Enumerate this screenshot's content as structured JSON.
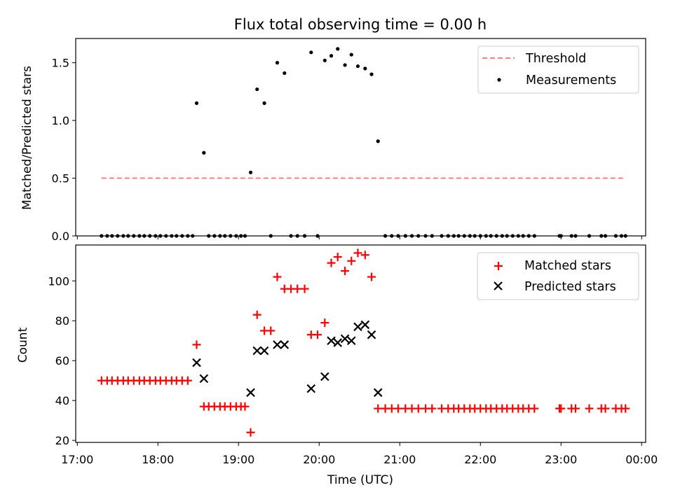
{
  "chart_data": [
    {
      "type": "scatter",
      "title": "Flux total observing time = 0.00 h",
      "xlabel": "",
      "ylabel": "Matched/Predicted stars",
      "ylim": [
        0,
        1.71
      ],
      "xlim": [
        16.98,
        24.05
      ],
      "yticks": [
        0.0,
        0.5,
        1.0,
        1.5
      ],
      "ytick_labels": [
        "0.0",
        "0.5",
        "1.0",
        "1.5"
      ],
      "legend_position": "top-right",
      "legend": [
        "Threshold",
        "Measurements"
      ],
      "threshold": {
        "name": "Threshold",
        "value": 0.5,
        "x_range": [
          17.3,
          23.8
        ],
        "color": "#ff8080"
      },
      "series": [
        {
          "name": "Measurements",
          "x": [
            17.3,
            17.37,
            17.43,
            17.5,
            17.57,
            17.63,
            17.7,
            17.77,
            17.83,
            17.9,
            17.97,
            18.03,
            18.1,
            18.17,
            18.23,
            18.3,
            18.37,
            18.43,
            18.48,
            18.57,
            18.63,
            18.7,
            18.77,
            18.83,
            18.9,
            18.97,
            19.03,
            19.08,
            19.15,
            19.23,
            19.32,
            19.4,
            19.48,
            19.57,
            19.65,
            19.73,
            19.82,
            19.9,
            19.98,
            20.07,
            20.15,
            20.23,
            20.32,
            20.4,
            20.48,
            20.57,
            20.65,
            20.73,
            20.82,
            20.9,
            20.98,
            21.07,
            21.15,
            21.23,
            21.32,
            21.4,
            21.52,
            21.6,
            21.67,
            21.73,
            21.8,
            21.87,
            21.93,
            22.0,
            22.07,
            22.13,
            22.2,
            22.27,
            22.33,
            22.4,
            22.47,
            22.53,
            22.6,
            22.67,
            22.98,
            23.0,
            23.13,
            23.18,
            23.35,
            23.5,
            23.55,
            23.68,
            23.75,
            23.8
          ],
          "y": [
            0,
            0,
            0,
            0,
            0,
            0,
            0,
            0,
            0,
            0,
            0,
            0,
            0,
            0,
            0,
            0,
            0,
            0,
            1.15,
            0.72,
            0,
            0,
            0,
            0,
            0,
            0,
            0,
            0,
            0.55,
            1.27,
            1.15,
            0,
            1.5,
            1.41,
            0,
            0,
            0,
            1.59,
            0,
            1.52,
            1.56,
            1.62,
            1.48,
            1.57,
            1.47,
            1.45,
            1.4,
            0.82,
            0,
            0,
            0,
            0,
            0,
            0,
            0,
            0,
            0,
            0,
            0,
            0,
            0,
            0,
            0,
            0,
            0,
            0,
            0,
            0,
            0,
            0,
            0,
            0,
            0,
            0,
            0,
            0,
            0,
            0,
            0,
            0,
            0,
            0,
            0,
            0
          ],
          "color": "#000000",
          "marker": "dot"
        }
      ]
    },
    {
      "type": "scatter",
      "title": "",
      "xlabel": "Time (UTC)",
      "ylabel": "Count",
      "ylim": [
        19,
        118
      ],
      "xlim": [
        16.98,
        24.05
      ],
      "yticks": [
        20,
        40,
        60,
        80,
        100
      ],
      "ytick_labels": [
        "20",
        "40",
        "60",
        "80",
        "100"
      ],
      "xticks": [
        17,
        18,
        19,
        20,
        21,
        22,
        23,
        24
      ],
      "xtick_labels": [
        "17:00",
        "18:00",
        "19:00",
        "20:00",
        "21:00",
        "22:00",
        "23:00",
        "00:00"
      ],
      "legend_position": "top-right",
      "legend": [
        "Matched stars",
        "Predicted stars"
      ],
      "series": [
        {
          "name": "Matched stars",
          "color": "#ff0000",
          "marker": "plus",
          "x": [
            17.3,
            17.37,
            17.43,
            17.5,
            17.57,
            17.63,
            17.7,
            17.77,
            17.83,
            17.9,
            17.97,
            18.03,
            18.1,
            18.17,
            18.23,
            18.3,
            18.37,
            18.48,
            18.57,
            18.63,
            18.7,
            18.77,
            18.83,
            18.9,
            18.97,
            19.03,
            19.08,
            19.15,
            19.23,
            19.32,
            19.4,
            19.48,
            19.57,
            19.65,
            19.73,
            19.82,
            19.9,
            19.98,
            20.07,
            20.15,
            20.23,
            20.32,
            20.4,
            20.48,
            20.57,
            20.65,
            20.73,
            20.82,
            20.9,
            20.98,
            21.07,
            21.15,
            21.23,
            21.32,
            21.4,
            21.52,
            21.6,
            21.67,
            21.73,
            21.8,
            21.87,
            21.93,
            22.0,
            22.07,
            22.13,
            22.2,
            22.27,
            22.33,
            22.4,
            22.47,
            22.53,
            22.6,
            22.67,
            22.98,
            23.0,
            23.13,
            23.18,
            23.35,
            23.5,
            23.55,
            23.68,
            23.75,
            23.8
          ],
          "y": [
            50,
            50,
            50,
            50,
            50,
            50,
            50,
            50,
            50,
            50,
            50,
            50,
            50,
            50,
            50,
            50,
            50,
            68,
            37,
            37,
            37,
            37,
            37,
            37,
            37,
            37,
            37,
            24,
            83,
            75,
            75,
            102,
            96,
            96,
            96,
            96,
            73,
            73,
            79,
            109,
            112,
            105,
            110,
            114,
            113,
            102,
            36,
            36,
            36,
            36,
            36,
            36,
            36,
            36,
            36,
            36,
            36,
            36,
            36,
            36,
            36,
            36,
            36,
            36,
            36,
            36,
            36,
            36,
            36,
            36,
            36,
            36,
            36,
            36,
            36,
            36,
            36,
            36,
            36,
            36,
            36,
            36,
            36
          ]
        },
        {
          "name": "Predicted stars",
          "color": "#000000",
          "marker": "x",
          "x": [
            18.48,
            18.57,
            19.15,
            19.23,
            19.32,
            19.48,
            19.57,
            19.9,
            20.07,
            20.15,
            20.23,
            20.32,
            20.4,
            20.48,
            20.57,
            20.65,
            20.73
          ],
          "y": [
            59,
            51,
            44,
            65,
            65,
            68,
            68,
            46,
            52,
            70,
            69,
            71,
            70,
            77,
            78,
            73,
            44
          ]
        }
      ]
    }
  ]
}
